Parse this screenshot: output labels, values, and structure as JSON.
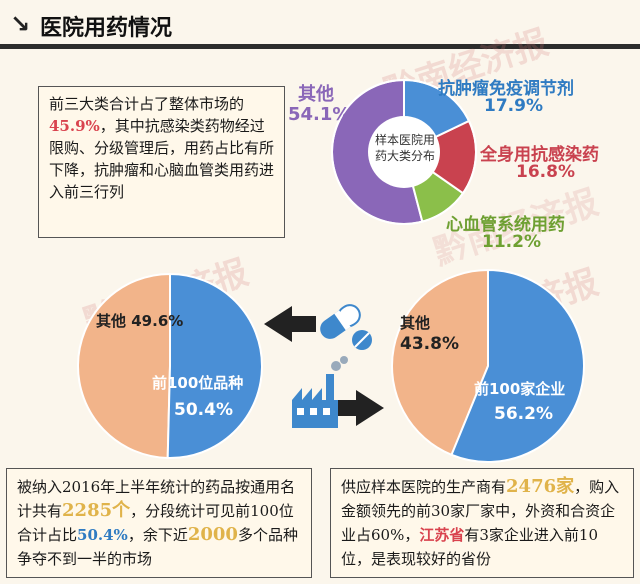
{
  "header": {
    "arrow": "↘",
    "title": "医院用药情况"
  },
  "colors": {
    "blue": "#4a8fd6",
    "red": "#c9424f",
    "green": "#8bbf4a",
    "purple": "#8a67b8",
    "peach": "#f2b48a"
  },
  "icons": [
    "left-arrow-icon",
    "right-arrow-icon",
    "pill-capsule-icon",
    "factory-icon"
  ],
  "watermark": "黔南经济报",
  "summary": {
    "p1": "前三大类合计占了整体市场的",
    "v1": "45.9%",
    "p2": "，其中抗感染类药物经过限购、分级管理后，用药占比有所下降，抗肿瘤和心脑血管类用药进入前三行列"
  },
  "note_left": {
    "p1": "被纳入2016年上半年统计的药品按通用名计共有",
    "v1": "2285个",
    "p2": "，分段统计可见前100位合计占比",
    "v2": "50.4%",
    "p3": "，余下近",
    "v3": "2000",
    "p4": "多个品种争夺不到一半的市场"
  },
  "note_right": {
    "p1": "供应样本医院的生产商有",
    "v1": "2476家",
    "p2": "，购入金额领先的前30家厂家中，外资和合资企业占60%，",
    "v2": "江苏省",
    "p3": "有3家企业进入前10位，是表现较好的省份"
  },
  "chart_data": [
    {
      "type": "pie",
      "title": "样本医院用药大类分布",
      "slices": [
        {
          "label": "抗肿瘤免疫调节剂",
          "value": 17.9,
          "value_label": "17.9%",
          "color": "#4a8fd6"
        },
        {
          "label": "全身用抗感染药",
          "value": 16.8,
          "value_label": "16.8%",
          "color": "#c9424f"
        },
        {
          "label": "心血管系统用药",
          "value": 11.2,
          "value_label": "11.2%",
          "color": "#8bbf4a"
        },
        {
          "label": "其他",
          "value": 54.1,
          "value_label": "54.1%",
          "color": "#8a67b8"
        }
      ]
    },
    {
      "type": "pie",
      "slices": [
        {
          "label": "前100位品种",
          "value": 50.4,
          "value_label": "50.4%",
          "color": "#4a8fd6"
        },
        {
          "label": "其他",
          "value": 49.6,
          "value_label": "49.6%",
          "color": "#f2b48a"
        }
      ]
    },
    {
      "type": "pie",
      "slices": [
        {
          "label": "前100家企业",
          "value": 56.2,
          "value_label": "56.2%",
          "color": "#4a8fd6"
        },
        {
          "label": "其他",
          "value": 43.8,
          "value_label": "43.8%",
          "color": "#f2b48a"
        }
      ]
    }
  ]
}
